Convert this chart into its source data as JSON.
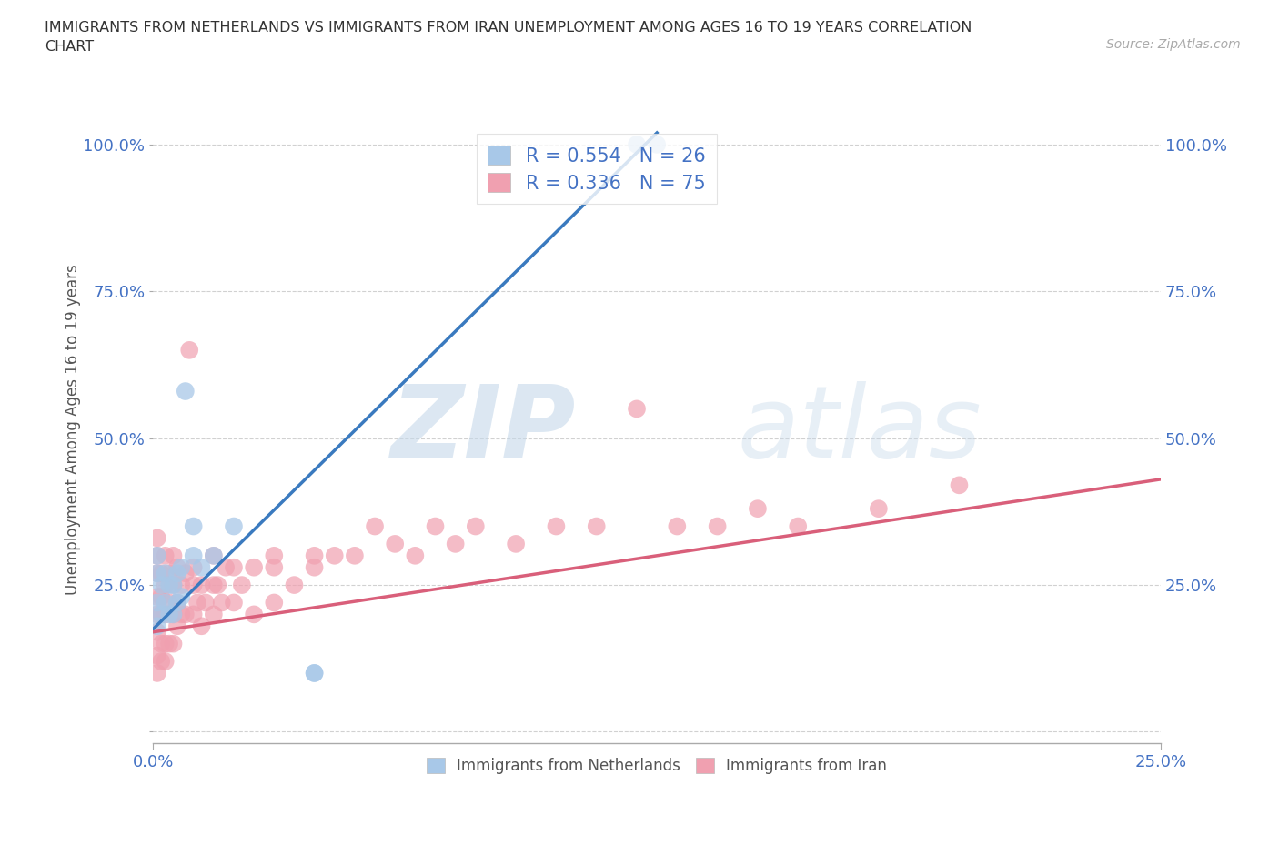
{
  "title": "IMMIGRANTS FROM NETHERLANDS VS IMMIGRANTS FROM IRAN UNEMPLOYMENT AMONG AGES 16 TO 19 YEARS CORRELATION\nCHART",
  "source_text": "Source: ZipAtlas.com",
  "ylabel": "Unemployment Among Ages 16 to 19 years",
  "xlim": [
    0.0,
    0.25
  ],
  "ylim": [
    -0.02,
    1.05
  ],
  "x_ticks": [
    0.0,
    0.25
  ],
  "x_tick_labels": [
    "0.0%",
    "25.0%"
  ],
  "y_ticks": [
    0.0,
    0.25,
    0.5,
    0.75,
    1.0
  ],
  "y_tick_labels": [
    "",
    "25.0%",
    "50.0%",
    "75.0%",
    "100.0%"
  ],
  "netherlands_R": 0.554,
  "netherlands_N": 26,
  "iran_R": 0.336,
  "iran_N": 75,
  "netherlands_color": "#a8c8e8",
  "iran_color": "#f0a0b0",
  "netherlands_line_color": "#3a7abf",
  "iran_line_color": "#d95f7a",
  "netherlands_x": [
    0.001,
    0.001,
    0.001,
    0.001,
    0.002,
    0.002,
    0.003,
    0.003,
    0.004,
    0.004,
    0.005,
    0.005,
    0.006,
    0.006,
    0.007,
    0.007,
    0.008,
    0.01,
    0.01,
    0.012,
    0.015,
    0.02,
    0.12,
    0.125,
    0.04,
    0.04
  ],
  "netherlands_y": [
    0.18,
    0.22,
    0.27,
    0.3,
    0.2,
    0.25,
    0.22,
    0.27,
    0.2,
    0.25,
    0.2,
    0.25,
    0.22,
    0.27,
    0.23,
    0.28,
    0.58,
    0.3,
    0.35,
    0.28,
    0.3,
    0.35,
    1.0,
    1.0,
    0.1,
    0.1
  ],
  "iran_x": [
    0.001,
    0.001,
    0.001,
    0.001,
    0.001,
    0.001,
    0.001,
    0.001,
    0.002,
    0.002,
    0.002,
    0.002,
    0.002,
    0.003,
    0.003,
    0.003,
    0.003,
    0.003,
    0.004,
    0.004,
    0.004,
    0.005,
    0.005,
    0.005,
    0.005,
    0.006,
    0.006,
    0.006,
    0.007,
    0.007,
    0.008,
    0.008,
    0.009,
    0.01,
    0.01,
    0.01,
    0.011,
    0.012,
    0.012,
    0.013,
    0.015,
    0.015,
    0.015,
    0.016,
    0.017,
    0.018,
    0.02,
    0.02,
    0.022,
    0.025,
    0.025,
    0.03,
    0.03,
    0.03,
    0.035,
    0.04,
    0.04,
    0.045,
    0.05,
    0.055,
    0.06,
    0.065,
    0.07,
    0.075,
    0.08,
    0.09,
    0.1,
    0.11,
    0.12,
    0.13,
    0.14,
    0.15,
    0.16,
    0.18,
    0.2
  ],
  "iran_y": [
    0.1,
    0.13,
    0.17,
    0.2,
    0.23,
    0.27,
    0.3,
    0.33,
    0.12,
    0.15,
    0.2,
    0.23,
    0.27,
    0.12,
    0.15,
    0.2,
    0.25,
    0.3,
    0.15,
    0.22,
    0.27,
    0.15,
    0.2,
    0.25,
    0.3,
    0.18,
    0.22,
    0.28,
    0.2,
    0.25,
    0.2,
    0.27,
    0.65,
    0.2,
    0.25,
    0.28,
    0.22,
    0.18,
    0.25,
    0.22,
    0.2,
    0.25,
    0.3,
    0.25,
    0.22,
    0.28,
    0.22,
    0.28,
    0.25,
    0.2,
    0.28,
    0.22,
    0.28,
    0.3,
    0.25,
    0.28,
    0.3,
    0.3,
    0.3,
    0.35,
    0.32,
    0.3,
    0.35,
    0.32,
    0.35,
    0.32,
    0.35,
    0.35,
    0.55,
    0.35,
    0.35,
    0.38,
    0.35,
    0.38,
    0.42
  ]
}
